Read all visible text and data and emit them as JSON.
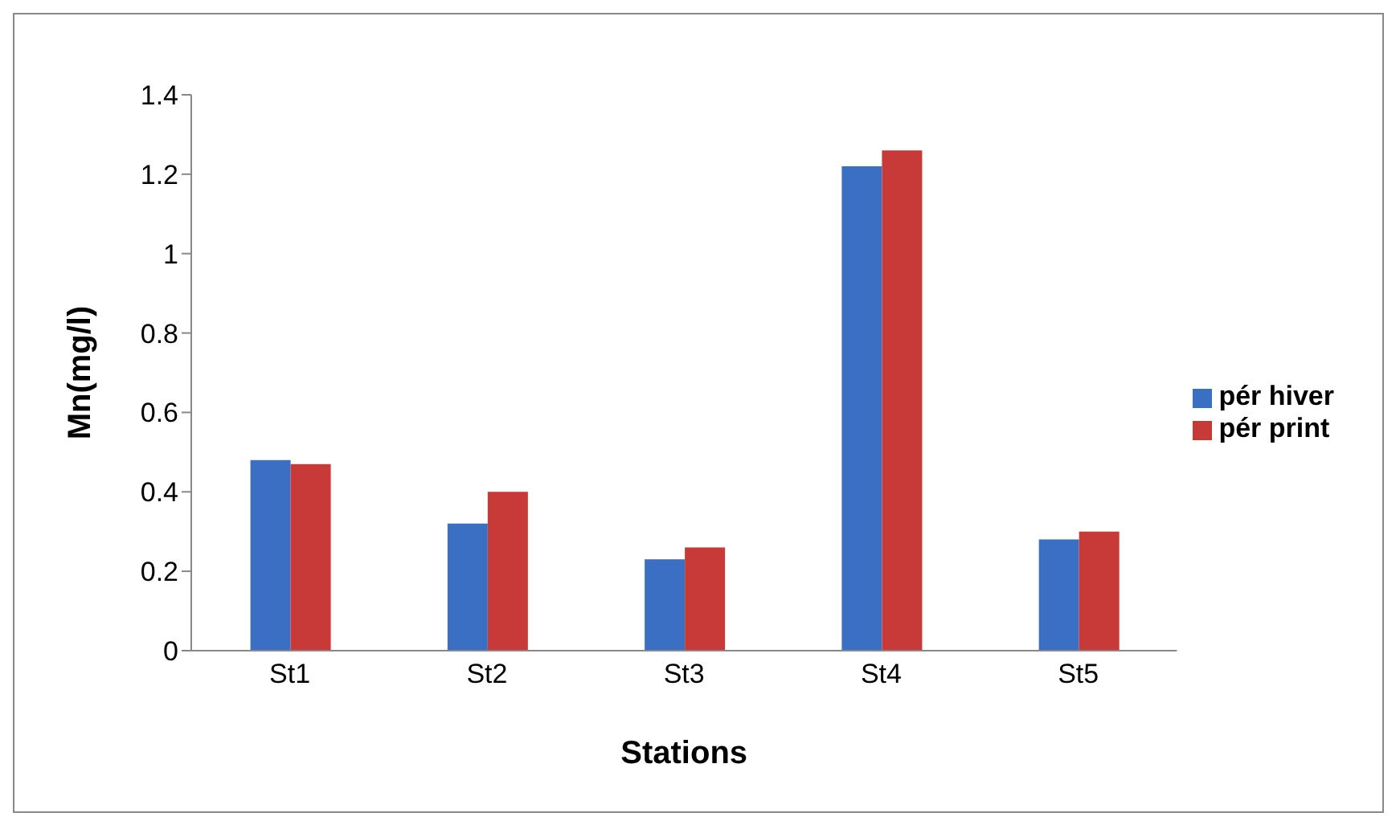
{
  "chart_data": {
    "type": "bar",
    "xlabel": "Stations",
    "ylabel": "Mn(mg/l)",
    "categories": [
      "St1",
      "St2",
      "St3",
      "St4",
      "St5"
    ],
    "series": [
      {
        "name": "pér hiver",
        "color": "#3a6fc4",
        "values": [
          0.48,
          0.32,
          0.23,
          1.22,
          0.28
        ]
      },
      {
        "name": "pér print",
        "color": "#c83a37",
        "values": [
          0.47,
          0.4,
          0.26,
          1.26,
          0.3
        ]
      }
    ],
    "ylim": [
      0,
      1.4
    ],
    "yticks": [
      0,
      0.2,
      0.4,
      0.6,
      0.8,
      1,
      1.2,
      1.4
    ],
    "grid": false,
    "legend": "right"
  }
}
